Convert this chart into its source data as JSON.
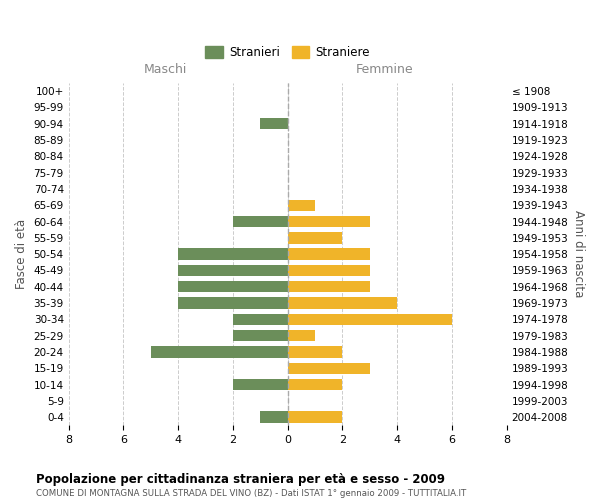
{
  "age_groups": [
    "100+",
    "95-99",
    "90-94",
    "85-89",
    "80-84",
    "75-79",
    "70-74",
    "65-69",
    "60-64",
    "55-59",
    "50-54",
    "45-49",
    "40-44",
    "35-39",
    "30-34",
    "25-29",
    "20-24",
    "15-19",
    "10-14",
    "5-9",
    "0-4"
  ],
  "birth_years": [
    "≤ 1908",
    "1909-1913",
    "1914-1918",
    "1919-1923",
    "1924-1928",
    "1929-1933",
    "1934-1938",
    "1939-1943",
    "1944-1948",
    "1949-1953",
    "1954-1958",
    "1959-1963",
    "1964-1968",
    "1969-1973",
    "1974-1978",
    "1979-1983",
    "1984-1988",
    "1989-1993",
    "1994-1998",
    "1999-2003",
    "2004-2008"
  ],
  "maschi": [
    0,
    0,
    1,
    0,
    0,
    0,
    0,
    0,
    2,
    0,
    4,
    4,
    4,
    4,
    2,
    2,
    5,
    0,
    2,
    0,
    1
  ],
  "femmine": [
    0,
    0,
    0,
    0,
    0,
    0,
    0,
    1,
    3,
    2,
    3,
    3,
    3,
    4,
    6,
    1,
    2,
    3,
    2,
    0,
    2
  ],
  "maschi_color": "#6b8e5a",
  "femmine_color": "#f0b429",
  "background_color": "#ffffff",
  "grid_color": "#cccccc",
  "title": "Popolazione per cittadinanza straniera per età e sesso - 2009",
  "subtitle": "COMUNE DI MONTAGNA SULLA STRADA DEL VINO (BZ) - Dati ISTAT 1° gennaio 2009 - TUTTITALIA.IT",
  "ylabel_left": "Fasce di età",
  "ylabel_right": "Anni di nascita",
  "xlabel_left": "Maschi",
  "xlabel_right": "Femmine",
  "legend_maschi": "Stranieri",
  "legend_femmine": "Straniere",
  "xlim": 8,
  "bar_height": 0.7
}
